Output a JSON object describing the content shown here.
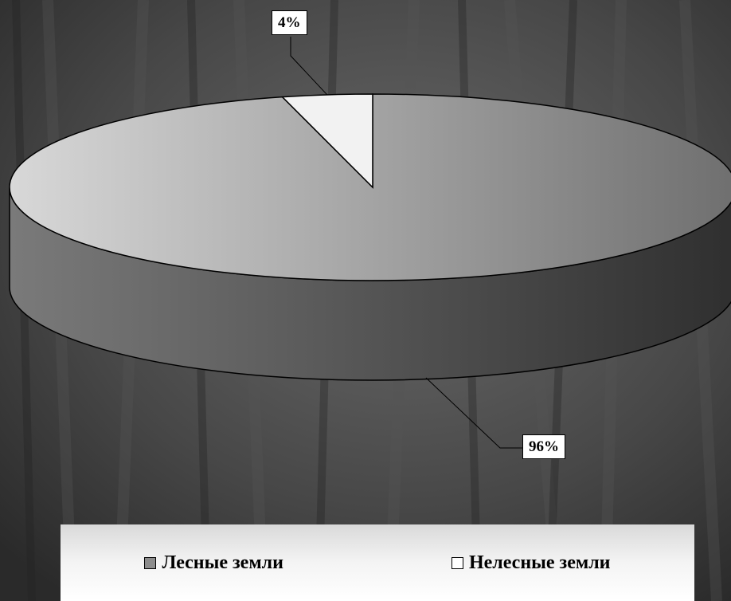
{
  "chart_data": {
    "type": "pie",
    "style": "3d",
    "slices": [
      {
        "label": "Лесные земли",
        "value": 96,
        "display": "96%",
        "color": "#8c8c8c"
      },
      {
        "label": "Нелесные земли",
        "value": 4,
        "display": "4%",
        "color": "#f2f2f2"
      }
    ],
    "legend": {
      "position": "bottom",
      "items": [
        "Лесные земли",
        "Нелесные земли"
      ]
    },
    "colors": {
      "forest_top_light": "#d8d8d8",
      "forest_top_dark": "#6f6f6f",
      "forest_side_light": "#7a7a7a",
      "forest_side_dark": "#2f2f2f",
      "nonforest": "#f2f2f2",
      "outline": "#000000"
    }
  }
}
